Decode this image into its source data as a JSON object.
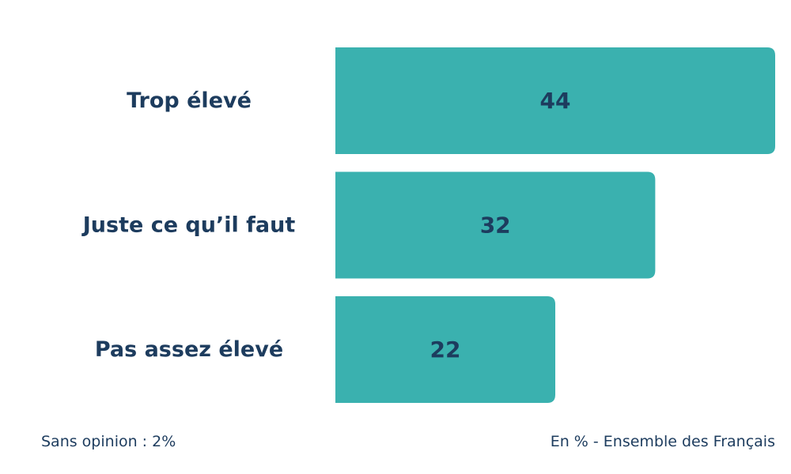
{
  "chart_data": {
    "type": "bar",
    "orientation": "horizontal",
    "categories": [
      "Trop élevé",
      "Juste ce qu’il faut",
      "Pas assez élevé"
    ],
    "values": [
      44,
      32,
      22
    ],
    "xlim": [
      0,
      44
    ],
    "grid": false,
    "bar_color": "#3ab1af",
    "label_color": "#1d3c5e"
  },
  "notes": {
    "left": "Sans opinion : 2%",
    "right": "En % - Ensemble des Français"
  }
}
